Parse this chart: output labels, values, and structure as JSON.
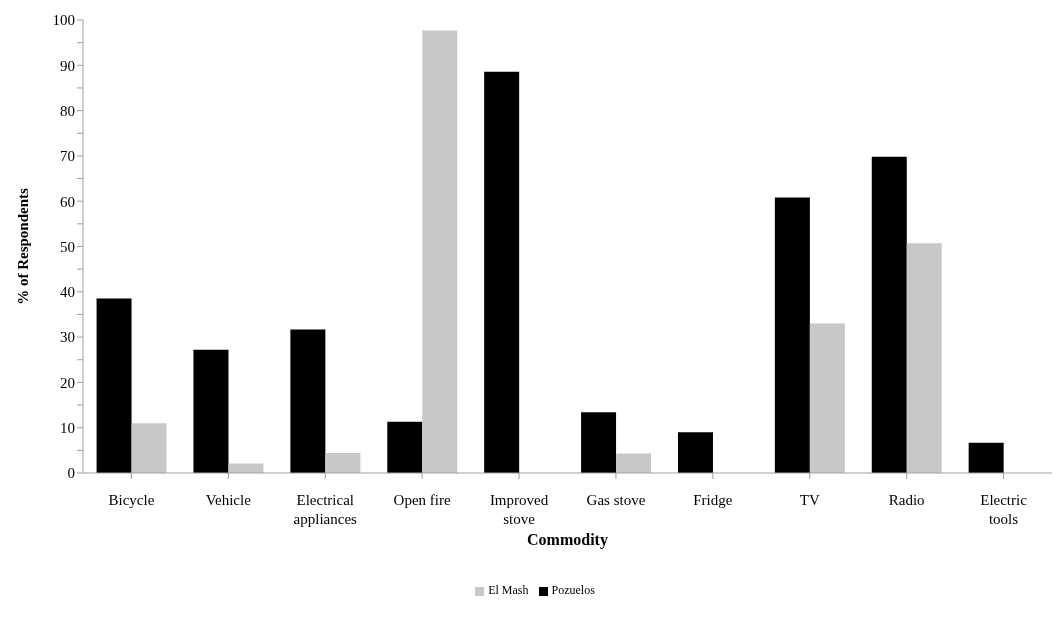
{
  "chart_data": {
    "type": "bar",
    "xlabel": "Commodity",
    "ylabel": "% of Respondents",
    "categories": [
      "Bicycle",
      "Vehicle",
      "Electrical appliances",
      "Open fire",
      "Improved stove",
      "Gas stove",
      "Fridge",
      "TV",
      "Radio",
      "Electric tools"
    ],
    "series": [
      {
        "name": "Pozuelos",
        "color": "#000000",
        "values": [
          38.5,
          27.2,
          31.7,
          11.3,
          88.6,
          13.4,
          9.0,
          60.8,
          69.8,
          6.7
        ]
      },
      {
        "name": "El Mash",
        "color": "#c8c8c8",
        "values": [
          11.0,
          2.1,
          4.4,
          97.7,
          0,
          4.3,
          0,
          33.0,
          50.7,
          0
        ]
      }
    ],
    "ylim": [
      0,
      100
    ],
    "yticks": [
      0,
      {
        "value": 5,
        "label": null
      },
      10,
      {
        "value": 15,
        "label": null
      },
      20,
      {
        "value": 25,
        "label": null
      },
      30,
      {
        "value": 35,
        "label": null
      },
      40,
      {
        "value": 45,
        "label": null
      },
      50,
      {
        "value": 55,
        "label": null
      },
      60,
      {
        "value": 65,
        "label": null
      },
      70,
      {
        "value": 75,
        "label": null
      },
      80,
      {
        "value": 85,
        "label": null
      },
      90,
      {
        "value": 95,
        "label": null
      },
      100
    ],
    "grid": false,
    "legend": "bottom"
  }
}
